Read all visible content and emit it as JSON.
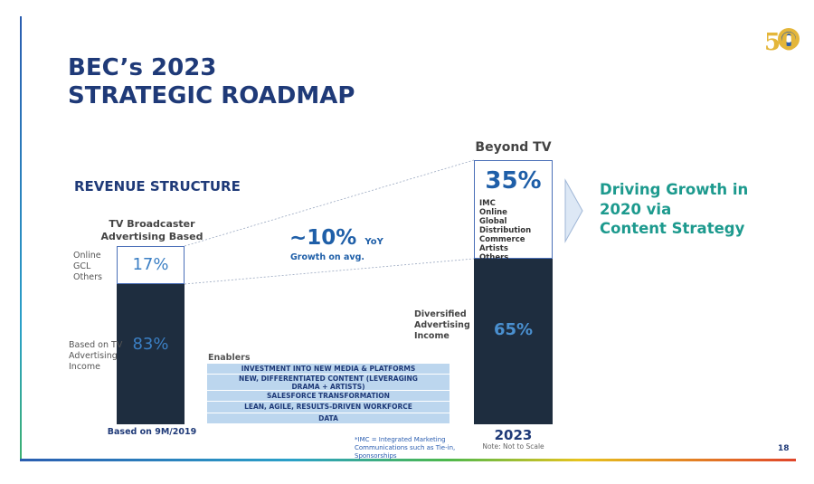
{
  "slide": {
    "title_line1": "BEC’s 2023",
    "title_line2": "STRATEGIC ROADMAP",
    "page_number": "18",
    "logo_text": "50"
  },
  "revenue": {
    "section_title": "REVENUE STRUCTURE",
    "left_bar": {
      "heading_line1": "TV Broadcaster",
      "heading_line2": "Advertising Based",
      "top_label_lines": [
        "Online",
        "GCL",
        "Others"
      ],
      "top_pct": "17%",
      "bottom_label_lines": [
        "Based on TV",
        "Advertising",
        "Income"
      ],
      "bottom_pct": "83%",
      "caption": "Based on 9M/2019"
    },
    "growth": {
      "value": "~10%",
      "suffix": "YoY",
      "caption": "Growth on avg."
    },
    "right_bar": {
      "heading": "Beyond TV",
      "top_pct": "35%",
      "top_items": [
        "IMC",
        "Online",
        "Global Distribution",
        "Commerce",
        "Artists",
        "Others"
      ],
      "side_label_lines": [
        "Diversified",
        "Advertising",
        "Income"
      ],
      "bottom_pct": "65%",
      "caption": "2023",
      "note": "Note: Not to Scale"
    }
  },
  "enablers": {
    "title": "Enablers",
    "items": [
      "INVESTMENT INTO NEW MEDIA & PLATFORMS",
      "NEW, DIFFERENTIATED CONTENT (LEVERAGING DRAMA + ARTISTS)",
      "SALESFORCE TRANSFORMATION",
      "LEAN, AGILE, RESULTS-DRIVEN WORKFORCE",
      "DATA"
    ]
  },
  "footnote_lines": [
    "*IMC = Integrated Marketing",
    "Communications such as Tie-in,",
    "Sponsorships"
  ],
  "driving_lines": [
    "Driving Growth in",
    "2020 via",
    "Content Strategy"
  ],
  "colors": {
    "title": "#1f3a78",
    "accent_teal": "#1d9a8e",
    "bar_dark": "#1e2d3f",
    "enabler_fill": "#bcd6ee"
  }
}
